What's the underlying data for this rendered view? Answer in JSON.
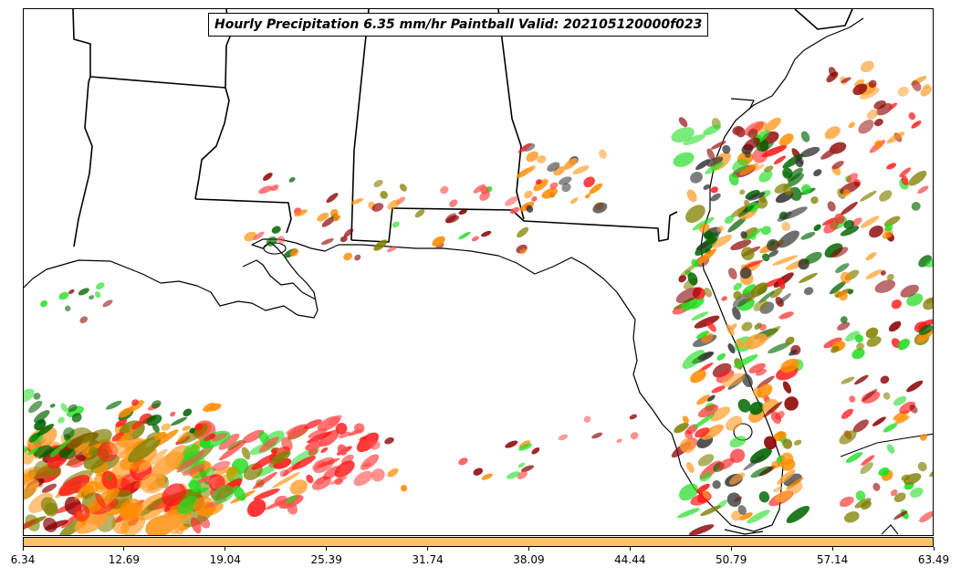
{
  "title": "Hourly Precipitation 6.35 mm/hr Paintball Valid: 202105120000f023",
  "colorbar": {
    "color": "#ffc266",
    "ticks": [
      "6.34",
      "12.69",
      "19.04",
      "25.39",
      "31.74",
      "38.09",
      "44.44",
      "50.79",
      "57.14",
      "63.49"
    ]
  },
  "palette": {
    "red": "#ff1a1a",
    "dark_red": "#8b0000",
    "orange": "#ff8c00",
    "light_orange": "#ffa033",
    "green": "#22dd22",
    "dark_green": "#006400",
    "olive": "#808000",
    "dark_gray": "#333333",
    "coral": "#ff5050",
    "brown_red": "#a52a2a"
  }
}
